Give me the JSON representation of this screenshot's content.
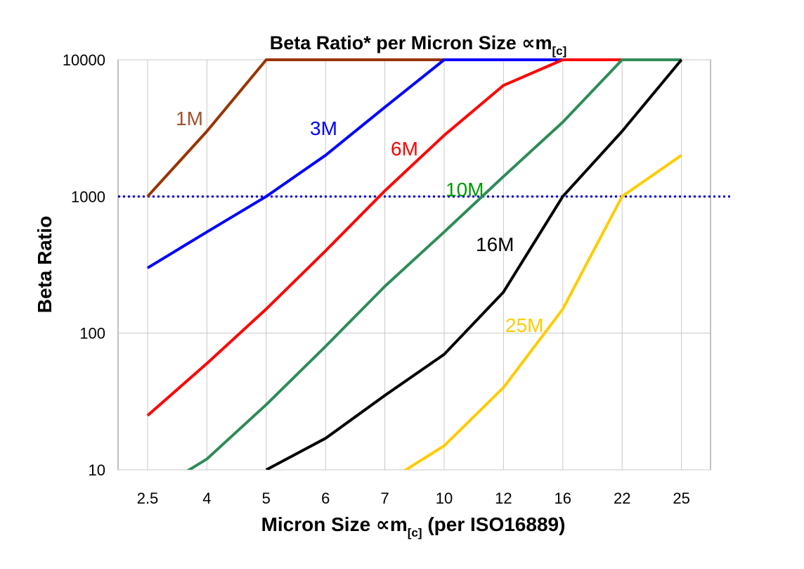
{
  "chart_data": {
    "type": "line",
    "title": "Beta Ratio* per Micron Size ∝m",
    "title_subscript": "[c]",
    "xlabel": "Micron Size ∝m",
    "xlabel_subscript": "[c]",
    "xlabel_suffix": " (per ISO16889)",
    "ylabel": "Beta Ratio",
    "y_scale": "log",
    "ylim": [
      10,
      10000
    ],
    "y_ticks": [
      "10",
      "100",
      "1000",
      "10000"
    ],
    "categories": [
      "2.5",
      "4",
      "5",
      "6",
      "7",
      "10",
      "12",
      "16",
      "22",
      "25"
    ],
    "grid": true,
    "reference_line": {
      "y": 1000,
      "style": "dotted",
      "color": "#0000CC"
    },
    "series": [
      {
        "name": "1M",
        "color": "#993300",
        "label_color": "#A0522D",
        "values": [
          1000,
          3000,
          10000,
          10000,
          10000,
          10000,
          10000,
          10000,
          10000,
          10000
        ]
      },
      {
        "name": "3M",
        "color": "#0000FF",
        "label_color": "#0000FF",
        "values": [
          300,
          550,
          1000,
          2000,
          4500,
          10000,
          10000,
          10000,
          10000,
          10000
        ]
      },
      {
        "name": "6M",
        "color": "#FF0000",
        "label_color": "#FF0000",
        "values": [
          25,
          60,
          150,
          400,
          1100,
          2800,
          6500,
          10000,
          10000,
          10000
        ]
      },
      {
        "name": "10M",
        "color": "#2E8B57",
        "label_color": "#009900",
        "values": [
          6.5,
          12,
          30,
          80,
          220,
          550,
          1400,
          3500,
          10000,
          10000
        ]
      },
      {
        "name": "16M",
        "color": "#000000",
        "label_color": "#000000",
        "values": [
          null,
          null,
          10,
          17,
          35,
          70,
          200,
          1000,
          3000,
          10000
        ]
      },
      {
        "name": "25M",
        "color": "#FFCC00",
        "label_color": "#FFCC00",
        "values": [
          null,
          null,
          null,
          null,
          8,
          15,
          40,
          150,
          1000,
          2000
        ]
      }
    ]
  }
}
